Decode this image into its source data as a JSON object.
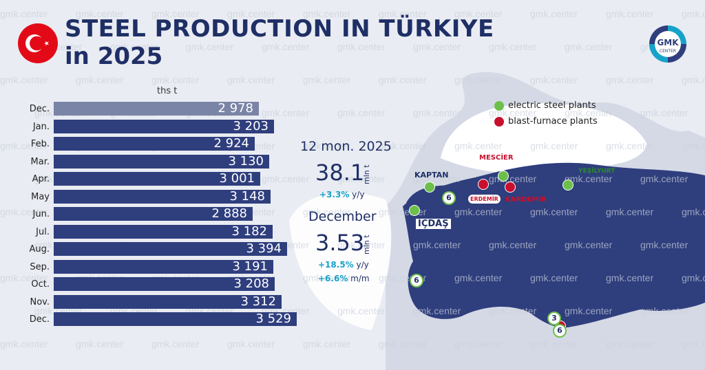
{
  "header": {
    "title_line1": "STEEL PRODUCTION IN TÜRKIYE",
    "title_line2": "in 2025",
    "logo_text": "GMK",
    "logo_subtext": "CENTER",
    "watermark": "gmk.center"
  },
  "colors": {
    "navy": "#2f3e7d",
    "title": "#1f2f66",
    "previous_year_bar": "#7a84a6",
    "electric": "#6cc04a",
    "blast_furnace": "#c8102e",
    "accent_change": "#16a3c9"
  },
  "chart_data": {
    "type": "bar",
    "orientation": "horizontal",
    "unit_label": "ths t",
    "categories": [
      "Dec.",
      "Jan.",
      "Feb.",
      "Mar.",
      "Apr.",
      "May",
      "Jun.",
      "Jul.",
      "Aug.",
      "Sep.",
      "Oct.",
      "Nov.",
      "Dec."
    ],
    "values": [
      2978,
      3203,
      2924,
      3130,
      3001,
      3148,
      2888,
      3182,
      3394,
      3191,
      3208,
      3312,
      3529
    ],
    "value_labels": [
      "2 978",
      "3 203",
      "2 924",
      "3 130",
      "3 001",
      "3 148",
      "2 888",
      "3 182",
      "3 394",
      "3 191",
      "3 208",
      "3 312",
      "3 529"
    ],
    "first_bar_previous_year": true
  },
  "stats": {
    "period_label": "12 mon. 2025",
    "period_value": "38.1",
    "period_unit": "mln t",
    "period_yy_value": "+3.3%",
    "period_yy_label": "y/y",
    "month_label": "December",
    "month_value": "3.53",
    "month_unit": "mln t",
    "month_yy_value": "+18.5%",
    "month_yy_label": "y/y",
    "month_mm_value": "+6.6%",
    "month_mm_label": "m/m"
  },
  "map": {
    "legend": {
      "electric": "electric steel plants",
      "blast": "blast-furnace plants"
    },
    "labels": {
      "kaptan": "KAPTAN",
      "icdas": "İÇDAŞ",
      "mescier": "MESCİER",
      "erdemir": "ERDEMİR",
      "kardemir": "KARDEMİR",
      "yesilyurt": "YEŞİLYURT"
    },
    "badges": [
      "6",
      "6",
      "3",
      "6"
    ]
  }
}
